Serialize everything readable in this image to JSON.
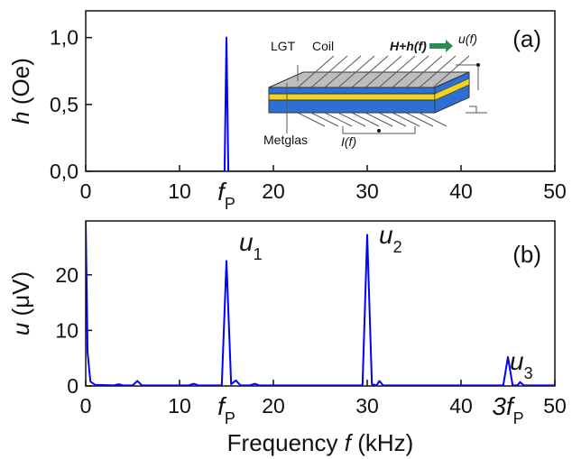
{
  "chart_data": [
    {
      "type": "line",
      "panel_label": "(a)",
      "ylabel_symbol": "h",
      "ylabel_unit": "(Oe)",
      "x": [
        0,
        14.8,
        15,
        15.2,
        50
      ],
      "series": [
        {
          "color": "#0000ff",
          "values": [
            0,
            0,
            1,
            0,
            0
          ]
        }
      ],
      "xlim": [
        0,
        50
      ],
      "ylim": [
        0,
        1.2
      ],
      "xticks": [
        0,
        10,
        20,
        30,
        40,
        50
      ],
      "yticks": [
        {
          "value": 0,
          "label": "0,0"
        },
        {
          "value": 0.5,
          "label": "0,5"
        },
        {
          "value": 1,
          "label": "1,0"
        }
      ],
      "x_annotations": [
        {
          "value": 15,
          "text": "f",
          "sub": "P"
        }
      ],
      "inset_labels": [
        "LGT",
        "Coil",
        "H+h(f)",
        "u(f)",
        "Metglas",
        "I(f)"
      ]
    },
    {
      "type": "line",
      "panel_label": "(b)",
      "ylabel_symbol": "u",
      "ylabel_unit": "(μV)",
      "xlabel_text": "Frequency",
      "xlabel_symbol": "f",
      "xlabel_unit": "(kHz)",
      "x": [
        0,
        0.2,
        0.5,
        1,
        3,
        3.5,
        4,
        5,
        5.5,
        6,
        11,
        11.5,
        12,
        14.5,
        15,
        15.5,
        16,
        16.5,
        17.5,
        18,
        18.5,
        29.5,
        30,
        30.5,
        31,
        31.3,
        31.7,
        44.5,
        45,
        45.5,
        46,
        46.3,
        46.7,
        50
      ],
      "series": [
        {
          "color": "#0000ff",
          "values": [
            29.7,
            6,
            0.8,
            0.2,
            0.1,
            0.3,
            0.1,
            0.1,
            0.9,
            0.1,
            0.1,
            0.4,
            0.1,
            0.1,
            22.5,
            0.3,
            1.0,
            0.1,
            0.1,
            0.4,
            0.1,
            0.1,
            27.2,
            0.3,
            0.1,
            0.9,
            0.1,
            0.1,
            5.2,
            0.1,
            0.1,
            0.7,
            0.1,
            0.1
          ]
        }
      ],
      "xlim": [
        0,
        50
      ],
      "ylim": [
        0,
        29.7
      ],
      "xticks": [
        0,
        10,
        20,
        30,
        40,
        50
      ],
      "yticks": [
        0,
        10,
        20
      ],
      "x_annotations": [
        {
          "value": 15,
          "text": "f",
          "sub": "P"
        },
        {
          "value": 45,
          "text": "3f",
          "sub": "P"
        }
      ],
      "peak_labels": [
        {
          "text": "u",
          "sub": "1"
        },
        {
          "text": "u",
          "sub": "2"
        },
        {
          "text": "u",
          "sub": "3"
        }
      ]
    }
  ]
}
